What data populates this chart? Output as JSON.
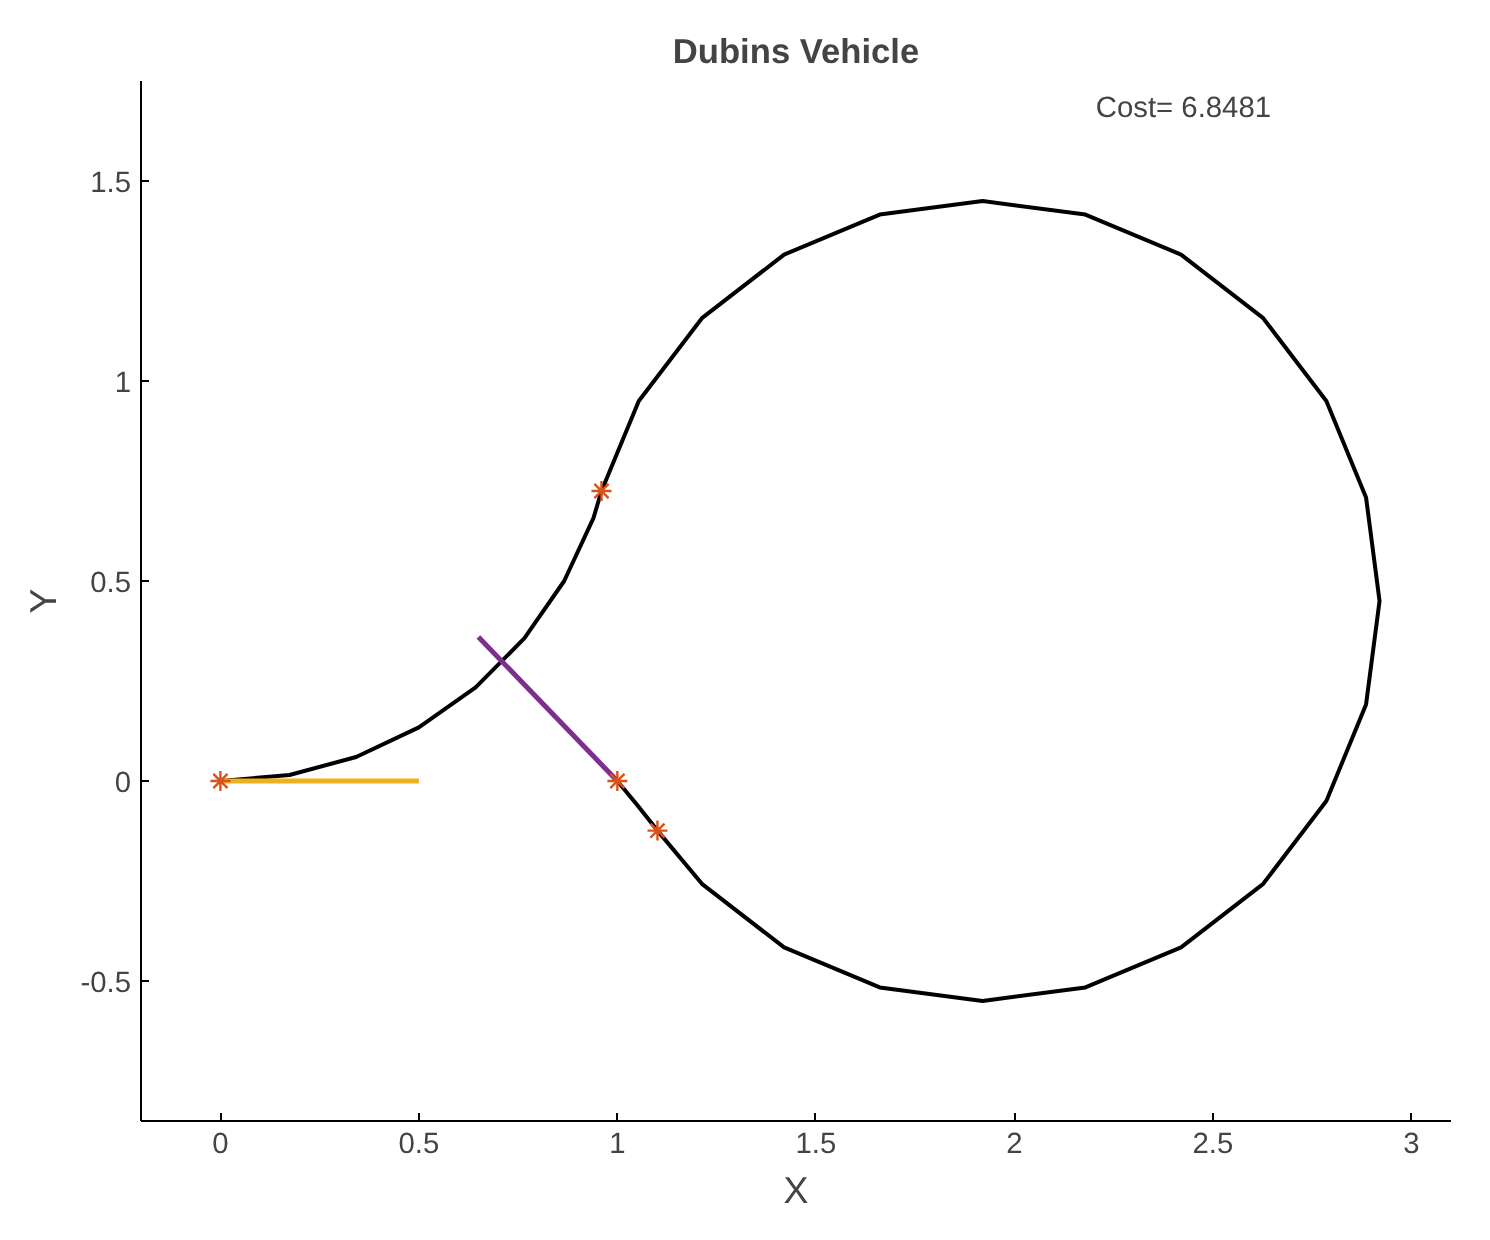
{
  "chart_data": {
    "type": "line",
    "title": "Dubins Vehicle",
    "xlabel": "X",
    "ylabel": "Y",
    "annotations": [
      "Cost= 6.8481"
    ],
    "xlim": [
      -0.2,
      3.1
    ],
    "ylim": [
      -0.85,
      1.75
    ],
    "xticks": [
      0,
      0.5,
      1,
      1.5,
      2,
      2.5,
      3
    ],
    "yticks": [
      -0.5,
      0,
      0.5,
      1,
      1.5
    ],
    "grid": false,
    "series": [
      {
        "color": "#000000",
        "x": [
          0,
          0.174,
          0.342,
          0.5,
          0.643,
          0.766,
          0.866,
          0.94,
          0.96,
          1.054,
          1.213,
          1.42,
          1.661,
          1.92,
          2.179,
          2.42,
          2.627,
          2.786,
          2.886,
          2.92,
          2.886,
          2.786,
          2.627,
          2.42,
          2.179,
          1.92,
          1.661,
          1.42,
          1.213,
          1.101,
          1.05,
          1.0
        ],
        "values": [
          0,
          0.015,
          0.06,
          0.134,
          0.234,
          0.357,
          0.5,
          0.658,
          0.725,
          0.95,
          1.157,
          1.316,
          1.416,
          1.45,
          1.416,
          1.316,
          1.157,
          0.95,
          0.709,
          0.45,
          0.191,
          -0.05,
          -0.257,
          -0.416,
          -0.516,
          -0.55,
          -0.516,
          -0.416,
          -0.257,
          -0.124,
          -0.06,
          0
        ]
      },
      {
        "color": "#edb120",
        "x": [
          0,
          0.5
        ],
        "values": [
          0,
          0
        ]
      },
      {
        "color": "#7e2f8e",
        "x": [
          1,
          0.65
        ],
        "values": [
          0,
          0.36
        ]
      },
      {
        "type": "scatter",
        "marker": "cross",
        "color": "#d95319",
        "x": [
          0,
          0.96,
          1,
          1.101
        ],
        "values": [
          0,
          0.725,
          0,
          -0.124
        ]
      }
    ]
  }
}
